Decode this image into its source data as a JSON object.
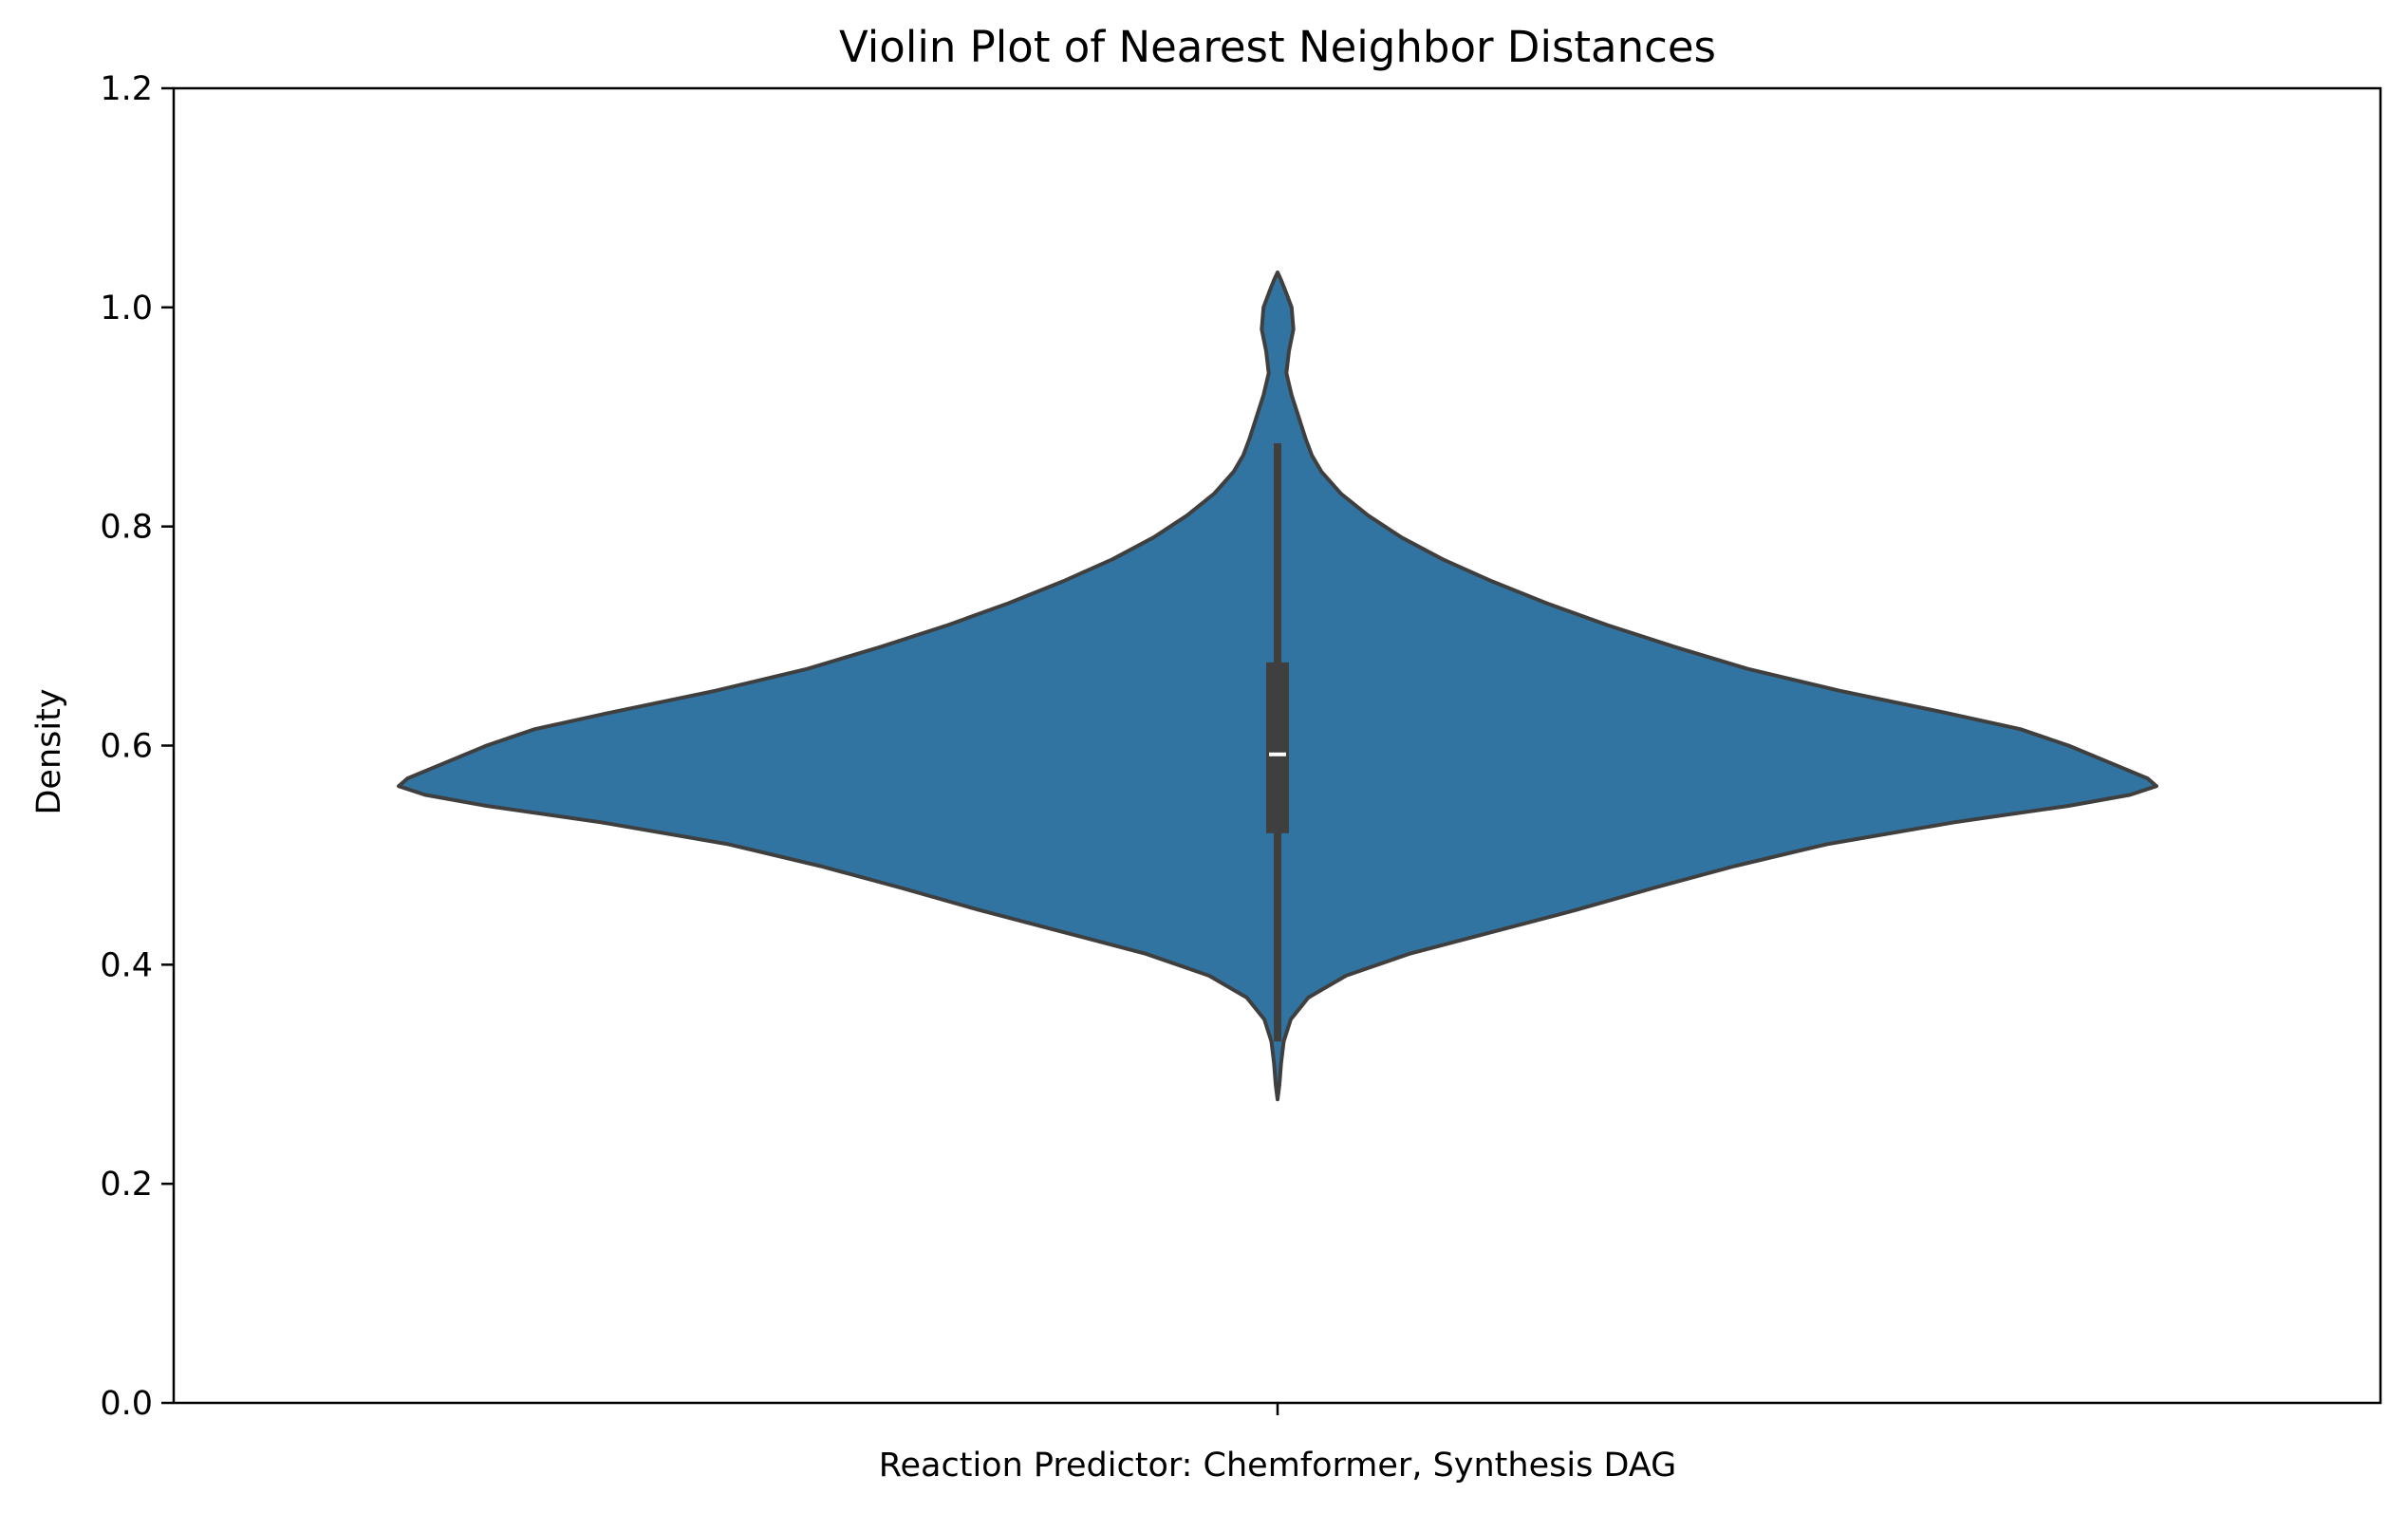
{
  "chart_data": {
    "type": "violin",
    "title": "Violin Plot of Nearest Neighbor Distances",
    "xlabel": "",
    "ylabel": "Density",
    "ylim": [
      0.0,
      1.2
    ],
    "y_ticks": [
      "0.0",
      "0.2",
      "0.4",
      "0.6",
      "0.8",
      "1.0",
      "1.2"
    ],
    "categories": [
      "Reaction Predictor: Chemformer, Synthesis DAG"
    ],
    "grid": false,
    "legend": "none",
    "colors": {
      "fill": "#3274a1",
      "outline": "#3f3f3f",
      "box": "#3f3f3f",
      "median": "#ffffff"
    },
    "violin": {
      "min": 0.277,
      "max": 1.032,
      "q1": 0.52,
      "median": 0.592,
      "q3": 0.676,
      "whisker_low": 0.33,
      "whisker_high": 0.876,
      "density_profile": [
        [
          0.277,
          0.0
        ],
        [
          0.29,
          0.002
        ],
        [
          0.31,
          0.004
        ],
        [
          0.33,
          0.007
        ],
        [
          0.35,
          0.015
        ],
        [
          0.37,
          0.035
        ],
        [
          0.39,
          0.078
        ],
        [
          0.41,
          0.15
        ],
        [
          0.43,
          0.245
        ],
        [
          0.45,
          0.34
        ],
        [
          0.47,
          0.428
        ],
        [
          0.49,
          0.52
        ],
        [
          0.51,
          0.625
        ],
        [
          0.53,
          0.77
        ],
        [
          0.545,
          0.9
        ],
        [
          0.555,
          0.97
        ],
        [
          0.563,
          1.0
        ],
        [
          0.57,
          0.99
        ],
        [
          0.585,
          0.945
        ],
        [
          0.6,
          0.9
        ],
        [
          0.615,
          0.845
        ],
        [
          0.63,
          0.76
        ],
        [
          0.65,
          0.64
        ],
        [
          0.67,
          0.535
        ],
        [
          0.69,
          0.452
        ],
        [
          0.71,
          0.375
        ],
        [
          0.73,
          0.306
        ],
        [
          0.75,
          0.244
        ],
        [
          0.77,
          0.188
        ],
        [
          0.79,
          0.141
        ],
        [
          0.81,
          0.103
        ],
        [
          0.83,
          0.072
        ],
        [
          0.85,
          0.05
        ],
        [
          0.865,
          0.039
        ],
        [
          0.88,
          0.032
        ],
        [
          0.9,
          0.024
        ],
        [
          0.92,
          0.016
        ],
        [
          0.94,
          0.01
        ],
        [
          0.96,
          0.013
        ],
        [
          0.98,
          0.018
        ],
        [
          1.0,
          0.016
        ],
        [
          1.015,
          0.009
        ],
        [
          1.025,
          0.004
        ],
        [
          1.032,
          0.0
        ]
      ]
    }
  }
}
